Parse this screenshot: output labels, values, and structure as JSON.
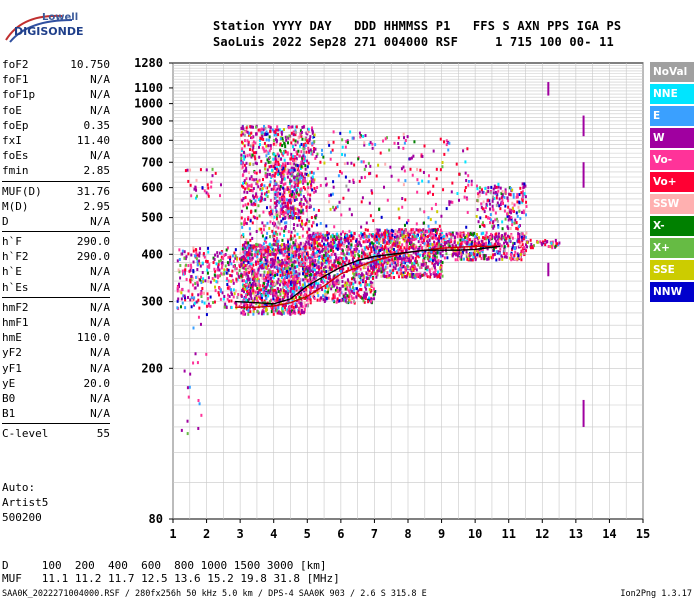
{
  "logo": {
    "line1": "Lowell",
    "line2": "DIGISONDE"
  },
  "header": {
    "row1": "Station YYYY DAY   DDD HHMMSS P1   FFS S AXN PPS IGA PS",
    "row2": "SaoLuis 2022 Sep28 271 004000 RSF     1 715 100 00- 11"
  },
  "params": [
    {
      "group": [
        {
          "name": "foF2",
          "value": "10.750"
        },
        {
          "name": "foF1",
          "value": "N/A"
        },
        {
          "name": "foF1p",
          "value": "N/A"
        },
        {
          "name": "foE",
          "value": "N/A"
        },
        {
          "name": "foEp",
          "value": "0.35"
        },
        {
          "name": "fxI",
          "value": "11.40"
        },
        {
          "name": "foEs",
          "value": "N/A"
        },
        {
          "name": "fmin",
          "value": "2.85"
        }
      ]
    },
    {
      "group": [
        {
          "name": "MUF(D)",
          "value": "31.76"
        },
        {
          "name": "M(D)",
          "value": "2.95"
        },
        {
          "name": "D",
          "value": "N/A"
        }
      ]
    },
    {
      "group": [
        {
          "name": "h`F",
          "value": "290.0"
        },
        {
          "name": "h`F2",
          "value": "290.0"
        },
        {
          "name": "h`E",
          "value": "N/A"
        },
        {
          "name": "h`Es",
          "value": "N/A"
        }
      ]
    },
    {
      "group": [
        {
          "name": "hmF2",
          "value": "N/A"
        },
        {
          "name": "hmF1",
          "value": "N/A"
        },
        {
          "name": "hmE",
          "value": "110.0"
        },
        {
          "name": "yF2",
          "value": "N/A"
        },
        {
          "name": "yF1",
          "value": "N/A"
        },
        {
          "name": "yE",
          "value": "20.0"
        },
        {
          "name": "B0",
          "value": "N/A"
        },
        {
          "name": "B1",
          "value": "N/A"
        }
      ]
    },
    {
      "group": [
        {
          "name": "C-level",
          "value": "55"
        }
      ]
    }
  ],
  "auto": {
    "line1": "Auto:",
    "line2": "Artist5",
    "line3": "500200"
  },
  "legend": [
    {
      "label": "NoVal",
      "color": "#a0a0a0"
    },
    {
      "label": "NNE",
      "color": "#00e5ff"
    },
    {
      "label": "E",
      "color": "#3aa0ff"
    },
    {
      "label": "W",
      "color": "#a000a0"
    },
    {
      "label": "Vo-",
      "color": "#ff3399"
    },
    {
      "label": "Vo+",
      "color": "#ff0033"
    },
    {
      "label": "SSW",
      "color": "#ffb0b0"
    },
    {
      "label": "X-",
      "color": "#008000"
    },
    {
      "label": "X+",
      "color": "#66bb44"
    },
    {
      "label": "SSE",
      "color": "#cccc00"
    },
    {
      "label": "NNW",
      "color": "#0000cc"
    }
  ],
  "bottom": {
    "row1": "D     100  200  400  600  800 1000 1500 3000 [km]",
    "row2": "MUF   11.1 11.2 11.7 12.5 13.6 15.2 19.8 31.8 [MHz]"
  },
  "footer": {
    "left": "SAA0K_2022271004000.RSF / 280fx256h 50 kHz 5.0 km / DPS-4 SAA0K 903 / 2.6 S 315.8 E",
    "right": "Ion2Png 1.3.17"
  },
  "chart_data": {
    "type": "scatter",
    "x_range": [
      1,
      15
    ],
    "y_range": [
      80,
      1280
    ],
    "x_ticks": [
      "1",
      "2",
      "3",
      "4",
      "5",
      "6",
      "7",
      "8",
      "9",
      "10",
      "11",
      "12",
      "13",
      "14",
      "15"
    ],
    "y_ticks": [
      {
        "value": 1280,
        "label": "1280"
      },
      {
        "value": 1100,
        "label": "1100"
      },
      {
        "value": 1000,
        "label": "1000"
      },
      {
        "value": 900,
        "label": "900"
      },
      {
        "value": 800,
        "label": "800"
      },
      {
        "value": 700,
        "label": "700"
      },
      {
        "value": 600,
        "label": "600"
      },
      {
        "value": 500,
        "label": "500"
      },
      {
        "value": 400,
        "label": "400"
      },
      {
        "value": 300,
        "label": "300"
      },
      {
        "value": 200,
        "label": "200"
      },
      {
        "value": 80,
        "label": "80"
      }
    ],
    "y_scale": "log",
    "grid": true,
    "trace_F_virtual": {
      "color": "#000000",
      "points": [
        [
          2.85,
          300
        ],
        [
          3.5,
          298
        ],
        [
          4.0,
          296
        ],
        [
          4.5,
          305
        ],
        [
          5.0,
          330
        ],
        [
          5.5,
          350
        ],
        [
          6.0,
          370
        ],
        [
          6.5,
          385
        ],
        [
          7.0,
          395
        ],
        [
          7.5,
          400
        ],
        [
          8.0,
          405
        ],
        [
          8.5,
          410
        ],
        [
          9.0,
          410
        ],
        [
          9.5,
          410
        ],
        [
          10.0,
          412
        ],
        [
          10.75,
          420
        ]
      ]
    },
    "trace_F_profile": {
      "color": "#cc0000",
      "points": [
        [
          2.85,
          290
        ],
        [
          3.5,
          290
        ],
        [
          4.0,
          292
        ],
        [
          4.5,
          298
        ],
        [
          5.0,
          310
        ],
        [
          5.5,
          330
        ],
        [
          6.0,
          355
        ],
        [
          7.0,
          385
        ],
        [
          8.0,
          405
        ],
        [
          9.0,
          415
        ],
        [
          10.0,
          420
        ],
        [
          10.75,
          420
        ]
      ]
    }
  }
}
